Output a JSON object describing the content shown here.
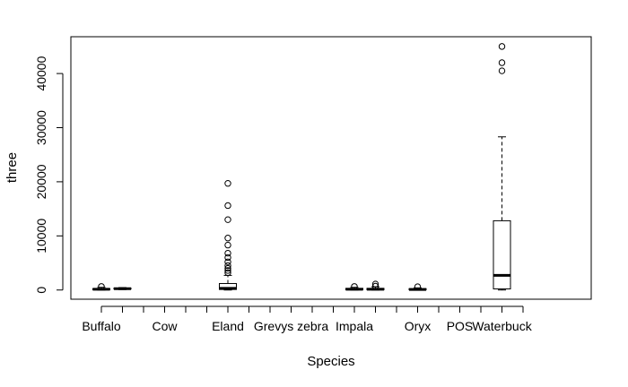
{
  "chart_data": {
    "type": "boxplot",
    "xlabel": "Species",
    "ylabel": "three",
    "ylim": [
      -1700,
      46800
    ],
    "yticks": [
      0,
      10000,
      20000,
      30000,
      40000
    ],
    "ytick_labels": [
      "0",
      "10000",
      "20000",
      "30000",
      "40000"
    ],
    "categories": [
      "Buffalo",
      "",
      "",
      "Cow",
      "",
      "",
      "Eland",
      "",
      "",
      "Grevys zebra",
      "",
      "",
      "Impala",
      "",
      "",
      "Oryx",
      "",
      "POS",
      "",
      "Waterbuck",
      ""
    ],
    "boxes": [
      {
        "index": 1,
        "min": 0,
        "q1": 50,
        "median": 150,
        "q3": 250,
        "max": 500,
        "outliers": [
          650
        ]
      },
      {
        "index": 2,
        "min": 80,
        "q1": 180,
        "median": 250,
        "q3": 350,
        "max": 450,
        "outliers": []
      },
      {
        "index": 7,
        "min": 0,
        "q1": 100,
        "median": 300,
        "q3": 1200,
        "max": 2700,
        "outliers": [
          3200,
          3600,
          4000,
          4500,
          5200,
          6000,
          6800,
          8300,
          9600,
          13000,
          15600,
          19700
        ]
      },
      {
        "index": 13,
        "min": 0,
        "q1": 50,
        "median": 150,
        "q3": 300,
        "max": 500,
        "outliers": [
          650
        ]
      },
      {
        "index": 14,
        "min": 0,
        "q1": 50,
        "median": 150,
        "q3": 300,
        "max": 600,
        "outliers": [
          700,
          1100
        ]
      },
      {
        "index": 16,
        "min": 0,
        "q1": 50,
        "median": 100,
        "q3": 250,
        "max": 400,
        "outliers": [
          600
        ]
      },
      {
        "index": 20,
        "min": 0,
        "q1": 200,
        "median": 2700,
        "q3": 12800,
        "max": 28300,
        "outliers": [
          40500,
          42000,
          45000
        ]
      }
    ],
    "colors": {
      "stroke": "#000000",
      "background": "#ffffff"
    }
  }
}
